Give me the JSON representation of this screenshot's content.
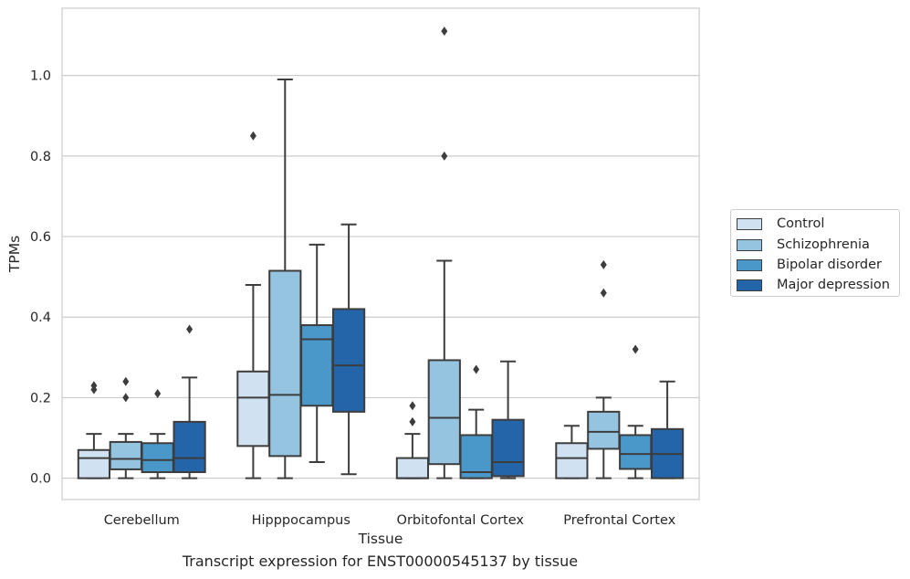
{
  "caption": "Transcript expression for ENST00000545137 by tissue",
  "chart_data": {
    "type": "boxplot",
    "xlabel": "Tissue",
    "ylabel": "TPMs",
    "ylim": [
      -0.053,
      1.167
    ],
    "yticks": [
      0.0,
      0.2,
      0.4,
      0.6,
      0.8,
      1.0
    ],
    "ytick_labels": [
      "0.0",
      "0.2",
      "0.4",
      "0.6",
      "0.8",
      "1.0"
    ],
    "grid": "horizontal",
    "legend_position": "right",
    "categories": [
      "Cerebellum",
      "Hipppocampus",
      "Orbitofontal Cortex",
      "Prefrontal Cortex"
    ],
    "series": [
      {
        "name": "Control",
        "color": "#d0e1f2",
        "boxes": [
          {
            "whislo": 0.0,
            "q1": 0.0,
            "med": 0.05,
            "q3": 0.07,
            "whishi": 0.11,
            "fliers": [
              0.22,
              0.23
            ]
          },
          {
            "whislo": 0.0,
            "q1": 0.08,
            "med": 0.2,
            "q3": 0.265,
            "whishi": 0.48,
            "fliers": [
              0.85
            ]
          },
          {
            "whislo": 0.0,
            "q1": 0.0,
            "med": 0.0,
            "q3": 0.05,
            "whishi": 0.11,
            "fliers": [
              0.14,
              0.18
            ]
          },
          {
            "whislo": 0.0,
            "q1": 0.0,
            "med": 0.05,
            "q3": 0.087,
            "whishi": 0.13,
            "fliers": []
          }
        ]
      },
      {
        "name": "Schizophrenia",
        "color": "#94c4df",
        "boxes": [
          {
            "whislo": 0.0,
            "q1": 0.022,
            "med": 0.048,
            "q3": 0.09,
            "whishi": 0.11,
            "fliers": [
              0.2,
              0.24
            ]
          },
          {
            "whislo": 0.0,
            "q1": 0.055,
            "med": 0.207,
            "q3": 0.515,
            "whishi": 0.99,
            "fliers": []
          },
          {
            "whislo": 0.0,
            "q1": 0.035,
            "med": 0.15,
            "q3": 0.293,
            "whishi": 0.54,
            "fliers": [
              0.8,
              1.11
            ]
          },
          {
            "whislo": 0.0,
            "q1": 0.073,
            "med": 0.115,
            "q3": 0.165,
            "whishi": 0.2,
            "fliers": [
              0.46,
              0.53
            ]
          }
        ]
      },
      {
        "name": "Bipolar disorder",
        "color": "#4a98c9",
        "boxes": [
          {
            "whislo": 0.0,
            "q1": 0.015,
            "med": 0.045,
            "q3": 0.087,
            "whishi": 0.11,
            "fliers": [
              0.21
            ]
          },
          {
            "whislo": 0.04,
            "q1": 0.18,
            "med": 0.345,
            "q3": 0.38,
            "whishi": 0.58,
            "fliers": []
          },
          {
            "whislo": 0.0,
            "q1": 0.0,
            "med": 0.015,
            "q3": 0.107,
            "whishi": 0.17,
            "fliers": [
              0.27
            ]
          },
          {
            "whislo": 0.0,
            "q1": 0.023,
            "med": 0.06,
            "q3": 0.107,
            "whishi": 0.13,
            "fliers": [
              0.32
            ]
          }
        ]
      },
      {
        "name": "Major depression",
        "color": "#2365a8",
        "boxes": [
          {
            "whislo": 0.0,
            "q1": 0.015,
            "med": 0.05,
            "q3": 0.14,
            "whishi": 0.25,
            "fliers": [
              0.37
            ]
          },
          {
            "whislo": 0.01,
            "q1": 0.165,
            "med": 0.28,
            "q3": 0.42,
            "whishi": 0.63,
            "fliers": []
          },
          {
            "whislo": 0.0,
            "q1": 0.005,
            "med": 0.04,
            "q3": 0.145,
            "whishi": 0.29,
            "fliers": []
          },
          {
            "whislo": 0.0,
            "q1": 0.0,
            "med": 0.06,
            "q3": 0.122,
            "whishi": 0.24,
            "fliers": []
          }
        ]
      }
    ]
  }
}
